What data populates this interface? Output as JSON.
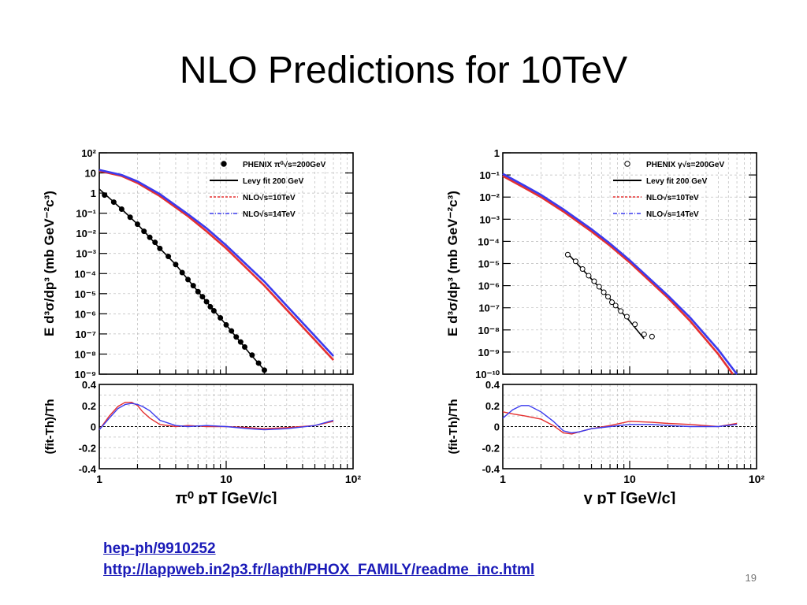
{
  "slide": {
    "title": "NLO Predictions for  10TeV",
    "links": [
      "hep-ph/9910252 ",
      "http://lappweb.in2p3.fr/lapth/PHOX_FAMILY/readme_inc.html "
    ],
    "page_number": "19"
  },
  "chart_data": [
    {
      "type": "line",
      "panel": "pi0",
      "ylabel": "E d³σ/dp³ (mb GeV⁻²c³)",
      "ratio_ylabel": "(fit-Th)/Th",
      "xlabel": "π⁰ pT [GeV/c]",
      "xscale": "log",
      "xlim": [
        1,
        100
      ],
      "ylim_exp": [
        -9,
        2
      ],
      "y_tick_labels": [
        "10²",
        "10",
        "1",
        "10⁻¹",
        "10⁻²",
        "10⁻³",
        "10⁻⁴",
        "10⁻⁵",
        "10⁻⁶",
        "10⁻⁷",
        "10⁻⁸",
        "10⁻⁹"
      ],
      "ratio_ylim": [
        -0.4,
        0.4
      ],
      "ratio_ticks": [
        "0.4",
        "0.2",
        "0",
        "-0.2",
        "-0.4"
      ],
      "x_ticks": [
        "1",
        "10",
        "10²"
      ],
      "grid": true,
      "legend_position": "top-right",
      "legend": [
        {
          "label": "PHENIX π⁰√s=200GeV",
          "style": "marker-filled"
        },
        {
          "label": "Levy fit 200 GeV",
          "style": "solid-black"
        },
        {
          "label": "NLO√s=10TeV",
          "style": "dashed-red"
        },
        {
          "label": "NLO√s=14TeV",
          "style": "dashdot-blue"
        }
      ],
      "colors": {
        "data": "#000000",
        "levy": "#000000",
        "nlo10": "#e53030",
        "nlo14": "#3a3aee"
      },
      "data_points": {
        "x": [
          1.1,
          1.3,
          1.5,
          1.75,
          2.0,
          2.25,
          2.5,
          2.75,
          3.0,
          3.5,
          4.0,
          4.5,
          5.0,
          5.5,
          6.0,
          6.5,
          7.0,
          7.5,
          8.0,
          9.0,
          10.0,
          11.0,
          12.0,
          13.0,
          14.0,
          16.0,
          18.0,
          20.0
        ],
        "log10_y": [
          -0.1,
          -0.45,
          -0.8,
          -1.2,
          -1.55,
          -1.9,
          -2.2,
          -2.45,
          -2.75,
          -3.15,
          -3.55,
          -3.95,
          -4.3,
          -4.6,
          -4.9,
          -5.15,
          -5.4,
          -5.65,
          -5.85,
          -6.2,
          -6.55,
          -6.85,
          -7.15,
          -7.4,
          -7.65,
          -8.05,
          -8.45,
          -8.8
        ]
      },
      "levy_fit": {
        "x": [
          1,
          1.5,
          2,
          3,
          4,
          5,
          7,
          10,
          15,
          20
        ],
        "log10_y": [
          0.2,
          -0.8,
          -1.55,
          -2.75,
          -3.55,
          -4.3,
          -5.4,
          -6.55,
          -7.9,
          -8.8
        ]
      },
      "nlo_10tev": {
        "x": [
          1,
          1.5,
          2,
          3,
          5,
          7,
          10,
          20,
          30,
          50,
          70
        ],
        "log10_y": [
          1.1,
          0.85,
          0.5,
          -0.15,
          -1.15,
          -1.9,
          -2.75,
          -4.6,
          -5.8,
          -7.3,
          -8.3
        ]
      },
      "nlo_14tev": {
        "x": [
          1,
          1.5,
          2,
          3,
          5,
          7,
          10,
          20,
          30,
          50,
          70
        ],
        "log10_y": [
          1.15,
          0.9,
          0.58,
          -0.05,
          -1.05,
          -1.75,
          -2.6,
          -4.4,
          -5.6,
          -7.1,
          -8.1
        ]
      },
      "ratio_10tev": {
        "x": [
          1,
          1.2,
          1.4,
          1.6,
          1.8,
          2,
          2.2,
          2.5,
          3,
          4,
          5,
          7,
          10,
          15,
          20,
          30,
          50,
          70
        ],
        "y": [
          -0.03,
          0.1,
          0.19,
          0.23,
          0.23,
          0.2,
          0.14,
          0.08,
          0.02,
          0.0,
          0.01,
          0.0,
          0.0,
          -0.01,
          -0.02,
          -0.01,
          0.01,
          0.05
        ]
      },
      "ratio_14tev": {
        "x": [
          1,
          1.2,
          1.4,
          1.6,
          1.8,
          2,
          2.2,
          2.5,
          3,
          4,
          5,
          7,
          10,
          15,
          20,
          30,
          50,
          70
        ],
        "y": [
          -0.03,
          0.08,
          0.17,
          0.21,
          0.22,
          0.21,
          0.19,
          0.15,
          0.06,
          0.01,
          0.0,
          0.01,
          0.0,
          -0.02,
          -0.03,
          -0.02,
          0.01,
          0.06
        ]
      }
    },
    {
      "type": "line",
      "panel": "gamma",
      "ylabel": "E d³σ/dp³ (mb GeV⁻²c³)",
      "ratio_ylabel": "(fit-Th)/Th",
      "xlabel": "γ pT [GeV/c]",
      "xscale": "log",
      "xlim": [
        1,
        100
      ],
      "ylim_exp": [
        -10,
        0
      ],
      "y_tick_labels": [
        "1",
        "10⁻¹",
        "10⁻²",
        "10⁻³",
        "10⁻⁴",
        "10⁻⁵",
        "10⁻⁶",
        "10⁻⁷",
        "10⁻⁸",
        "10⁻⁹",
        "10⁻¹⁰"
      ],
      "ratio_ylim": [
        -0.4,
        0.4
      ],
      "ratio_ticks": [
        "0.4",
        "0.2",
        "0",
        "-0.2",
        "-0.4"
      ],
      "x_ticks": [
        "1",
        "10",
        "10²"
      ],
      "grid": true,
      "legend_position": "top-right",
      "legend": [
        {
          "label": "PHENIX γ√s=200GeV",
          "style": "marker-open"
        },
        {
          "label": "Levy fit 200 GeV",
          "style": "solid-black"
        },
        {
          "label": "NLO√s=10TeV",
          "style": "dashed-red"
        },
        {
          "label": "NLO√s=14TeV",
          "style": "dashdot-blue"
        }
      ],
      "colors": {
        "data": "#000000",
        "levy": "#000000",
        "nlo10": "#e53030",
        "nlo14": "#3a3aee"
      },
      "data_points": {
        "x": [
          3.25,
          3.75,
          4.25,
          4.75,
          5.25,
          5.75,
          6.25,
          6.75,
          7.25,
          7.75,
          8.5,
          9.5,
          11.0,
          13.0,
          15.0
        ],
        "log10_y": [
          -4.6,
          -4.9,
          -5.25,
          -5.55,
          -5.8,
          -6.05,
          -6.3,
          -6.5,
          -6.75,
          -6.9,
          -7.15,
          -7.4,
          -7.75,
          -8.2,
          -8.3
        ]
      },
      "levy_fit": {
        "x": [
          3.25,
          5,
          7,
          10,
          13
        ],
        "log10_y": [
          -4.55,
          -5.7,
          -6.6,
          -7.6,
          -8.4
        ]
      },
      "nlo_10tev": {
        "x": [
          1,
          1.5,
          2,
          3,
          5,
          7,
          10,
          20,
          30,
          50,
          65
        ],
        "log10_y": [
          -1.05,
          -1.6,
          -2.0,
          -2.65,
          -3.55,
          -4.2,
          -4.95,
          -6.55,
          -7.6,
          -9.1,
          -10.0
        ]
      },
      "nlo_14tev": {
        "x": [
          1,
          1.5,
          2,
          3,
          5,
          7,
          10,
          20,
          30,
          50,
          70
        ],
        "log10_y": [
          -0.95,
          -1.5,
          -1.9,
          -2.55,
          -3.45,
          -4.1,
          -4.85,
          -6.45,
          -7.45,
          -8.9,
          -10.0
        ]
      },
      "ratio_10tev": {
        "x": [
          1,
          1.2,
          1.5,
          2,
          2.5,
          3,
          3.5,
          4,
          5,
          7,
          10,
          15,
          20,
          30,
          50,
          70
        ],
        "y": [
          0.14,
          0.12,
          0.1,
          0.07,
          0.01,
          -0.06,
          -0.07,
          -0.05,
          -0.02,
          0.01,
          0.05,
          0.04,
          0.03,
          0.02,
          0.0,
          0.03
        ]
      },
      "ratio_14tev": {
        "x": [
          1,
          1.2,
          1.4,
          1.6,
          2,
          2.5,
          3,
          3.5,
          4,
          5,
          7,
          10,
          15,
          20,
          30,
          50,
          70
        ],
        "y": [
          0.08,
          0.16,
          0.2,
          0.2,
          0.14,
          0.05,
          -0.04,
          -0.06,
          -0.05,
          -0.02,
          0.0,
          0.02,
          0.02,
          0.01,
          0.0,
          0.0,
          0.02
        ]
      }
    }
  ]
}
